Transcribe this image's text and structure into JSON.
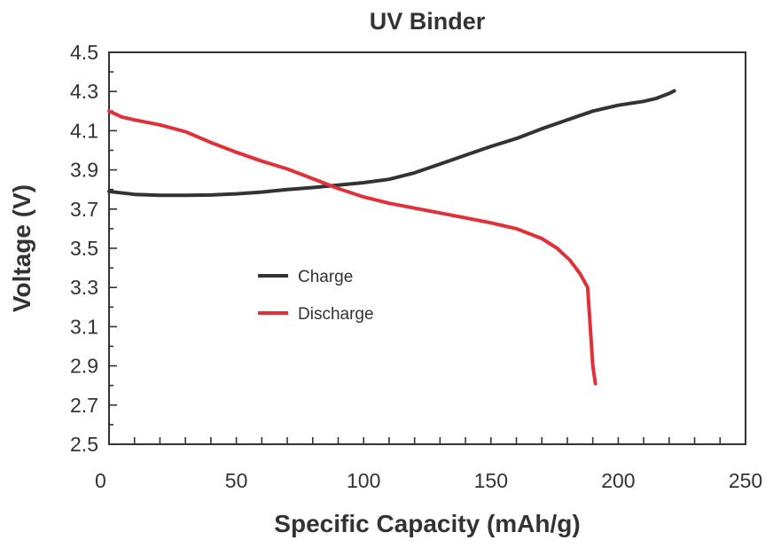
{
  "chart_data": {
    "type": "line",
    "title": "UV Binder",
    "xlabel": "Specific Capacity (mAh/g)",
    "ylabel": "Voltage (V)",
    "xlim": [
      0,
      250
    ],
    "ylim": [
      2.5,
      4.5
    ],
    "x_ticks": [
      0,
      50,
      100,
      150,
      200,
      250
    ],
    "y_ticks": [
      2.5,
      2.7,
      2.9,
      3.1,
      3.3,
      3.5,
      3.7,
      3.9,
      4.1,
      4.3,
      4.5
    ],
    "grid": false,
    "legend_position": "center-left",
    "series": [
      {
        "name": "Charge",
        "color": "#333333",
        "points": [
          [
            0,
            3.79
          ],
          [
            10,
            3.775
          ],
          [
            20,
            3.77
          ],
          [
            30,
            3.77
          ],
          [
            40,
            3.772
          ],
          [
            50,
            3.778
          ],
          [
            60,
            3.787
          ],
          [
            70,
            3.8
          ],
          [
            80,
            3.81
          ],
          [
            90,
            3.822
          ],
          [
            100,
            3.835
          ],
          [
            110,
            3.852
          ],
          [
            120,
            3.885
          ],
          [
            130,
            3.93
          ],
          [
            140,
            3.975
          ],
          [
            150,
            4.02
          ],
          [
            160,
            4.06
          ],
          [
            170,
            4.11
          ],
          [
            180,
            4.155
          ],
          [
            190,
            4.2
          ],
          [
            200,
            4.23
          ],
          [
            210,
            4.25
          ],
          [
            215,
            4.265
          ],
          [
            220,
            4.29
          ],
          [
            222,
            4.303
          ]
        ]
      },
      {
        "name": "Discharge",
        "color": "#e0313a",
        "points": [
          [
            0,
            4.2
          ],
          [
            5,
            4.17
          ],
          [
            10,
            4.155
          ],
          [
            20,
            4.13
          ],
          [
            30,
            4.095
          ],
          [
            40,
            4.04
          ],
          [
            50,
            3.99
          ],
          [
            60,
            3.945
          ],
          [
            70,
            3.905
          ],
          [
            80,
            3.855
          ],
          [
            90,
            3.805
          ],
          [
            100,
            3.762
          ],
          [
            110,
            3.73
          ],
          [
            120,
            3.705
          ],
          [
            130,
            3.68
          ],
          [
            140,
            3.655
          ],
          [
            150,
            3.63
          ],
          [
            160,
            3.6
          ],
          [
            170,
            3.55
          ],
          [
            176,
            3.5
          ],
          [
            181,
            3.44
          ],
          [
            185,
            3.37
          ],
          [
            188,
            3.3
          ],
          [
            189,
            3.1
          ],
          [
            190,
            2.9
          ],
          [
            191,
            2.81
          ]
        ]
      }
    ]
  }
}
